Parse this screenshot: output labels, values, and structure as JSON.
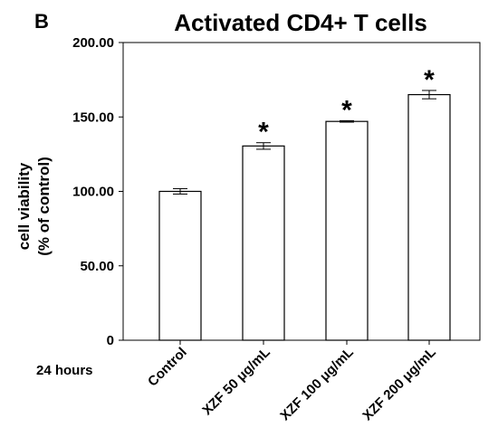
{
  "panel_label": "B",
  "x_note": "24 hours",
  "chart_data": {
    "type": "bar",
    "title": "Activated CD4+ T cells",
    "xlabel": "",
    "ylabel_lines": [
      "cell viability",
      "(% of control)"
    ],
    "categories": [
      "Control",
      "XZF 50 μg/mL",
      "XZF 100 μg/mL",
      "XZF 200 μg/mL"
    ],
    "values": [
      100.0,
      130.5,
      147.0,
      165.0
    ],
    "errors": [
      1.8,
      2.2,
      0.5,
      2.8
    ],
    "significance": [
      "",
      "*",
      "*",
      "*"
    ],
    "ylim": [
      0,
      200
    ],
    "yticks": [
      0,
      50,
      100,
      150,
      200
    ],
    "ytick_labels": [
      "0",
      "50.00",
      "100.00",
      "150.00",
      "200.00"
    ],
    "grid": false,
    "colors": {
      "bar_fill": "#ffffff",
      "stroke": "#000000"
    }
  }
}
